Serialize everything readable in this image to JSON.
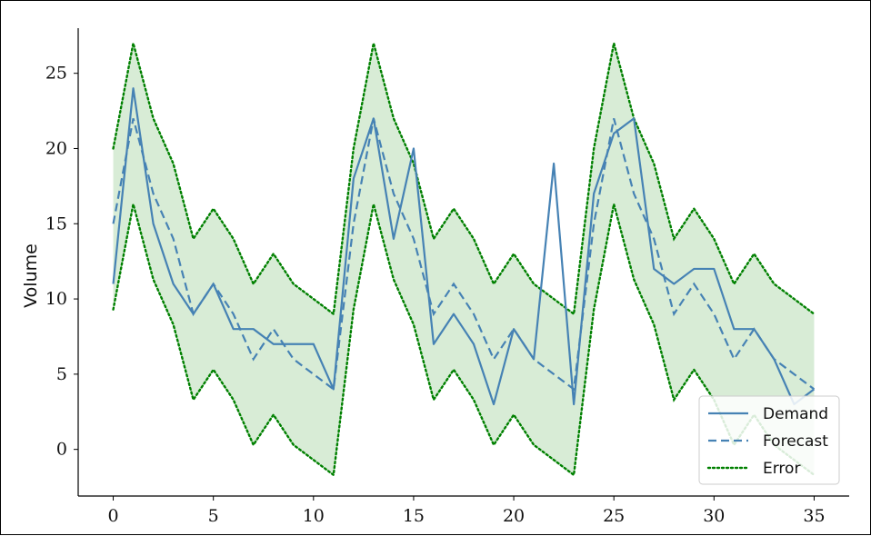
{
  "chart_data": {
    "type": "line",
    "title": "",
    "xlabel": "",
    "ylabel": "Volume",
    "xlim": [
      -1.75,
      36.75
    ],
    "ylim": [
      -3.1,
      28
    ],
    "x_ticks": [
      0,
      5,
      10,
      15,
      20,
      25,
      30,
      35
    ],
    "y_ticks": [
      0,
      5,
      10,
      15,
      20,
      25
    ],
    "grid": false,
    "legend_position": "bottom-right",
    "x": [
      0,
      1,
      2,
      3,
      4,
      5,
      6,
      7,
      8,
      9,
      10,
      11,
      12,
      13,
      14,
      15,
      16,
      17,
      18,
      19,
      20,
      21,
      22,
      23,
      24,
      25,
      26,
      27,
      28,
      29,
      30,
      31,
      32,
      33,
      34,
      35
    ],
    "series": [
      {
        "name": "Demand",
        "style": "solid",
        "color": "#4682b4",
        "values": [
          11,
          24,
          15,
          11,
          9,
          11,
          8,
          8,
          7,
          7,
          7,
          4,
          18,
          22,
          14,
          20,
          7,
          9,
          7,
          3,
          8,
          6,
          19,
          3,
          17,
          21,
          22,
          12,
          11,
          12,
          12,
          8,
          8,
          6,
          3,
          4
        ]
      },
      {
        "name": "Forecast",
        "style": "dashed",
        "color": "#4682b4",
        "values": [
          15,
          22,
          17,
          14,
          9,
          11,
          9,
          6,
          8,
          6,
          5,
          4,
          15,
          22,
          17,
          14,
          9,
          11,
          9,
          6,
          8,
          6,
          5,
          4,
          15,
          22,
          17,
          14,
          9,
          11,
          9,
          6,
          8,
          6,
          5,
          4
        ]
      },
      {
        "name": "Error",
        "style": "dotted",
        "color": "#008000",
        "upper": [
          20,
          27,
          22,
          19,
          14,
          16,
          14,
          11,
          13,
          11,
          10,
          9,
          20,
          27,
          22,
          19,
          14,
          16,
          14,
          11,
          13,
          11,
          10,
          9,
          20,
          27,
          22,
          19,
          14,
          16,
          14,
          11,
          13,
          11,
          10,
          9
        ],
        "lower": [
          9.3,
          16.3,
          11.3,
          8.3,
          3.3,
          5.3,
          3.3,
          0.3,
          2.3,
          0.3,
          -0.7,
          -1.7,
          9.3,
          16.3,
          11.3,
          8.3,
          3.3,
          5.3,
          3.3,
          0.3,
          2.3,
          0.3,
          -0.7,
          -1.7,
          9.3,
          16.3,
          11.3,
          8.3,
          3.3,
          5.3,
          3.3,
          0.3,
          2.3,
          0.3,
          -0.7,
          -1.7
        ],
        "fill_color": "#d8ecd6"
      }
    ]
  }
}
